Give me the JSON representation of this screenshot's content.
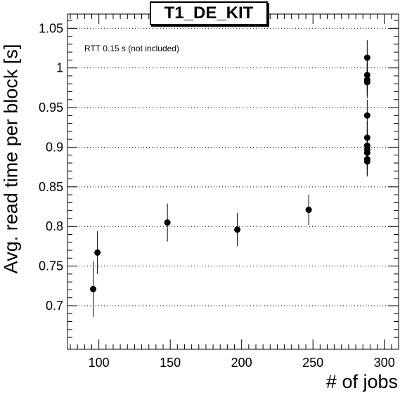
{
  "chart_data": {
    "type": "scatter",
    "title": "T1_DE_KIT",
    "xlabel": "# of jobs",
    "ylabel": "Avg. read time per block [s]",
    "annotation": "RTT 0.15 s (not included)",
    "xlim": [
      78,
      310
    ],
    "ylim": [
      0.645,
      1.068
    ],
    "x_ticks": [
      100,
      150,
      200,
      250,
      300
    ],
    "y_ticks": [
      0.7,
      0.75,
      0.8,
      0.85,
      0.9,
      0.95,
      1,
      1.05
    ],
    "x_tick_labels": [
      "100",
      "150",
      "200",
      "250",
      "300"
    ],
    "y_tick_labels": [
      "0.7",
      "0.75",
      "0.8",
      "0.85",
      "0.9",
      "0.95",
      "1",
      "1.05"
    ],
    "grid": "horizontal-dotted",
    "series": [
      {
        "points": [
          {
            "x": 96,
            "y": 0.721,
            "err": 0.035
          },
          {
            "x": 99,
            "y": 0.767,
            "err": 0.027
          },
          {
            "x": 148,
            "y": 0.805,
            "err": 0.024
          },
          {
            "x": 197,
            "y": 0.796,
            "err": 0.021
          },
          {
            "x": 247,
            "y": 0.821,
            "err": 0.019
          },
          {
            "x": 288,
            "y": 1.013,
            "err": 0.022
          },
          {
            "x": 288,
            "y": 0.991,
            "err": 0.02
          },
          {
            "x": 288,
            "y": 0.985,
            "err": 0.02
          },
          {
            "x": 288,
            "y": 0.982,
            "err": 0.02
          },
          {
            "x": 288,
            "y": 0.94,
            "err": 0.02
          },
          {
            "x": 288,
            "y": 0.912,
            "err": 0.02
          },
          {
            "x": 288,
            "y": 0.902,
            "err": 0.02
          },
          {
            "x": 288,
            "y": 0.897,
            "err": 0.02
          },
          {
            "x": 288,
            "y": 0.893,
            "err": 0.02
          },
          {
            "x": 288,
            "y": 0.885,
            "err": 0.02
          },
          {
            "x": 288,
            "y": 0.882,
            "err": 0.019
          }
        ]
      }
    ]
  }
}
